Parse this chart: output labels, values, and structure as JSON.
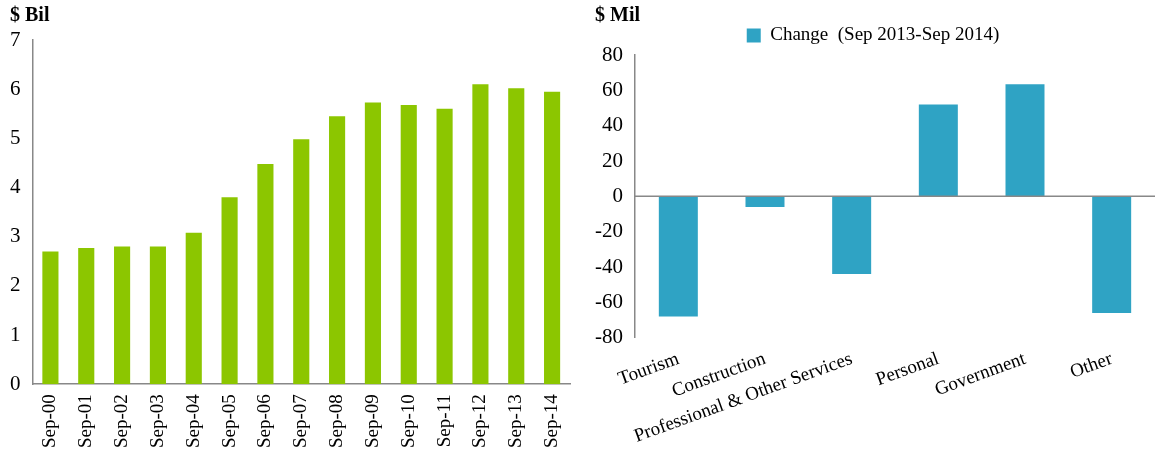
{
  "chart_data": [
    {
      "type": "bar",
      "ylabel": "$ Bil",
      "categories": [
        "Sep-00",
        "Sep-01",
        "Sep-02",
        "Sep-03",
        "Sep-04",
        "Sep-05",
        "Sep-06",
        "Sep-07",
        "Sep-08",
        "Sep-09",
        "Sep-10",
        "Sep-11",
        "Sep-12",
        "Sep-13",
        "Sep-14"
      ],
      "series": [
        {
          "color": "#8cc600",
          "values": [
            2.7,
            2.77,
            2.8,
            2.8,
            3.08,
            3.8,
            4.48,
            4.98,
            5.45,
            5.73,
            5.68,
            5.6,
            6.1,
            6.02,
            5.95
          ]
        }
      ],
      "ylim": [
        0,
        7
      ],
      "yticks": [
        0,
        1,
        2,
        3,
        4,
        5,
        6,
        7
      ]
    },
    {
      "type": "bar",
      "ylabel": "$ Mil",
      "categories": [
        "Tourism",
        "Construction",
        "Professional & Other Services",
        "Personal",
        "Government",
        "Other"
      ],
      "series": [
        {
          "name": "Change  (Sep 2013-Sep 2014)",
          "color": "#2fa3c4",
          "values": [
            -68,
            -6,
            -44,
            52,
            63.5,
            -66
          ]
        }
      ],
      "ylim": [
        -80,
        80
      ],
      "yticks": [
        -80,
        -60,
        -40,
        -20,
        0,
        20,
        40,
        60,
        80
      ],
      "legend": "top"
    }
  ]
}
